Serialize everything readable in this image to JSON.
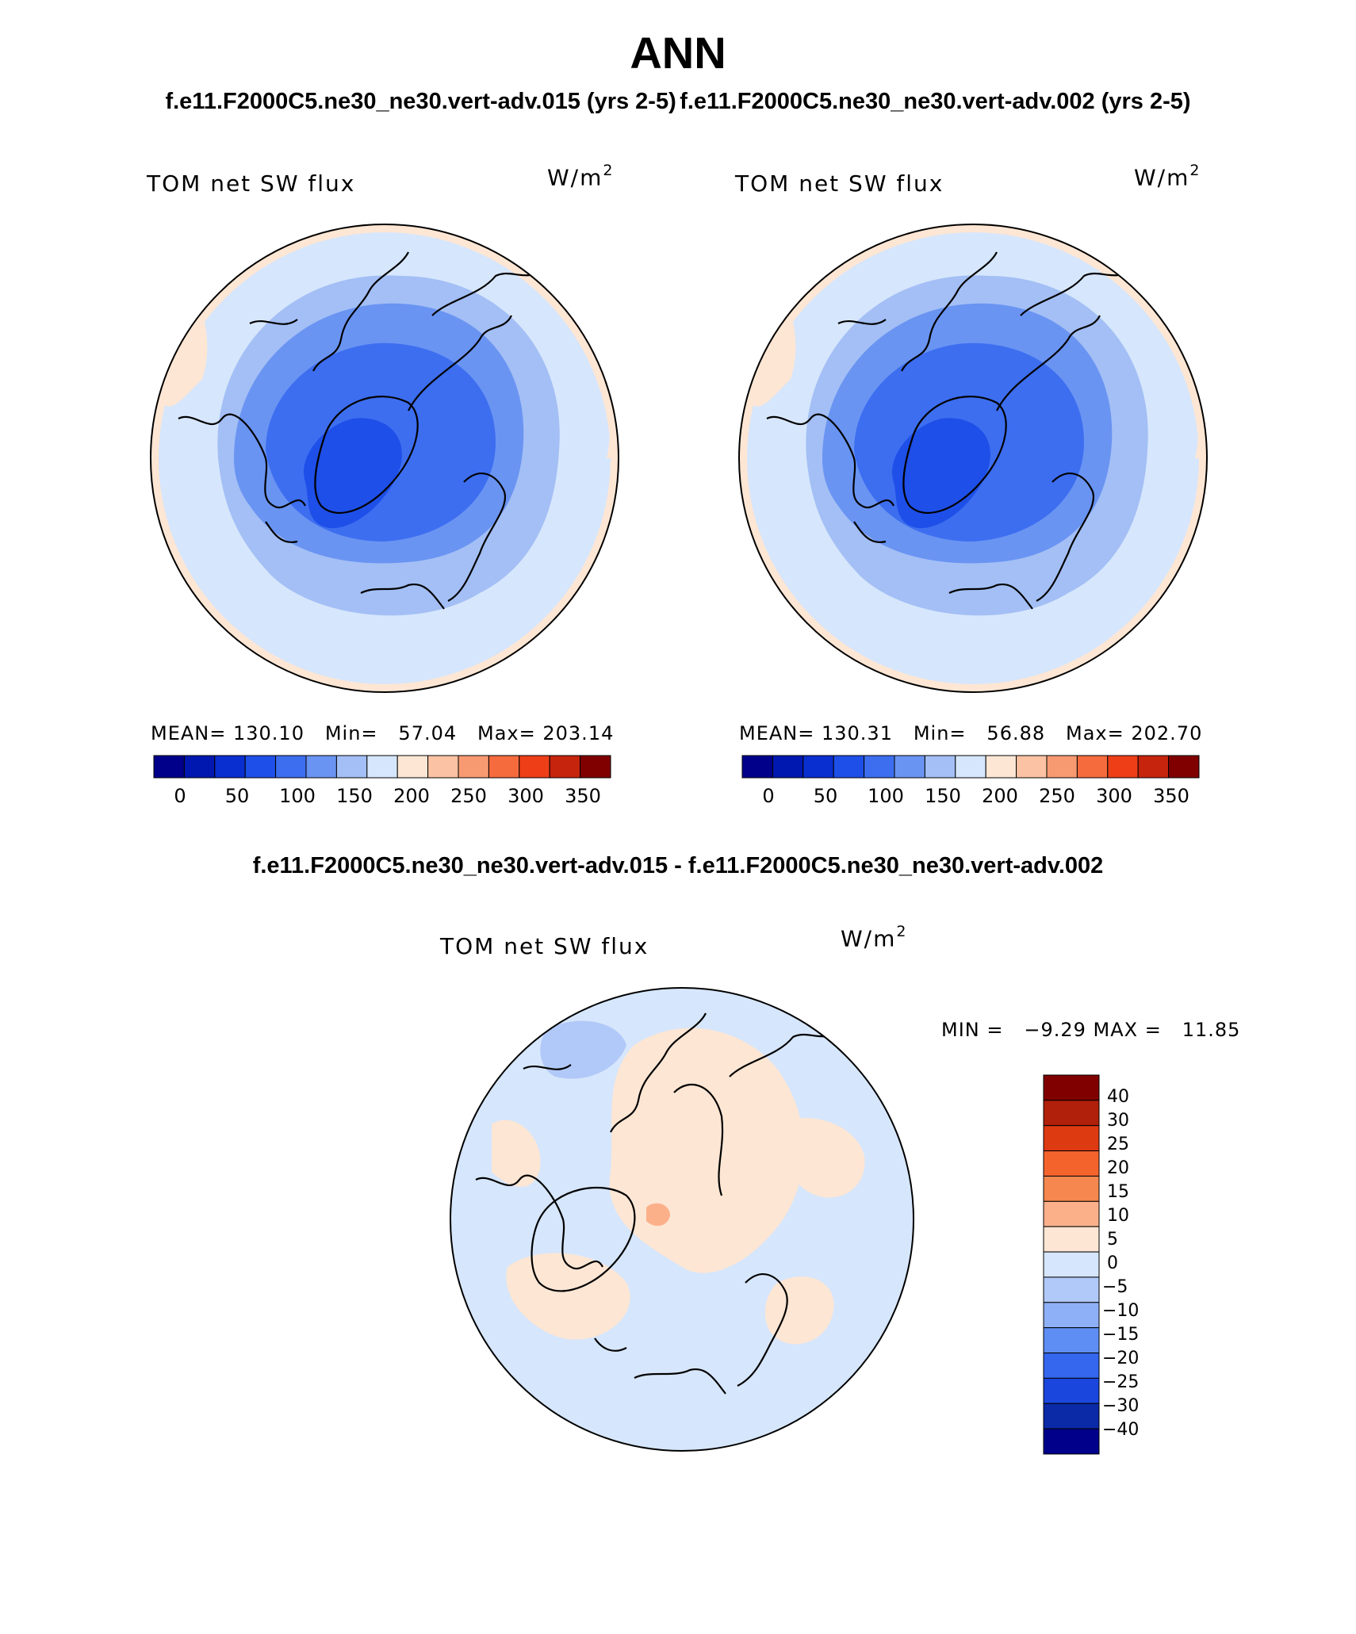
{
  "header": {
    "title": "ANN",
    "subtitle_left": "f.e11.F2000C5.ne30_ne30.vert-adv.015 (yrs 2-5)",
    "subtitle_right": "f.e11.F2000C5.ne30_ne30.vert-adv.002 (yrs 2-5)",
    "diff_title": "f.e11.F2000C5.ne30_ne30.vert-adv.015 - f.e11.F2000C5.ne30_ne30.vert-adv.002"
  },
  "panels": [
    {
      "variable": "TOM net SW flux",
      "units_base": "W/m",
      "units_exp": "2",
      "stats": "MEAN= 130.10   Min=   57.04   Max= 203.14",
      "colorbar_labels": [
        "0",
        "50",
        "100",
        "150",
        "200",
        "250",
        "300",
        "350"
      ]
    },
    {
      "variable": "TOM net SW flux",
      "units_base": "W/m",
      "units_exp": "2",
      "stats": "MEAN= 130.31   Min=   56.88   Max= 202.70",
      "colorbar_labels": [
        "0",
        "50",
        "100",
        "150",
        "200",
        "250",
        "300",
        "350"
      ]
    }
  ],
  "diff_panel": {
    "variable": "TOM net SW flux",
    "units_base": "W/m",
    "units_exp": "2",
    "minmax": "MIN =   −9.29 MAX =   11.85",
    "colorbar_labels": [
      "40",
      "30",
      "25",
      "20",
      "15",
      "10",
      "5",
      "0",
      "−5",
      "−10",
      "−15",
      "−20",
      "−25",
      "−30",
      "−40"
    ]
  },
  "colors": {
    "abs_scale": [
      "#00008b",
      "#0018b0",
      "#0a2fd0",
      "#1e4fe8",
      "#3d6ef0",
      "#6a94f2",
      "#a3bff5",
      "#d6e6fc",
      "#fde6d4",
      "#fbc3a3",
      "#f79a72",
      "#f56b3e",
      "#ee3e17",
      "#c6240c",
      "#800000"
    ],
    "diff_scale": [
      "#800000",
      "#b0200a",
      "#de3a12",
      "#f5632d",
      "#f5874f",
      "#fcb08a",
      "#fde6d4",
      "#d6e6fc",
      "#b1c9f8",
      "#8eb0f6",
      "#5e8df3",
      "#3466ee",
      "#1a46de",
      "#0b2aa8",
      "#00008b"
    ]
  }
}
